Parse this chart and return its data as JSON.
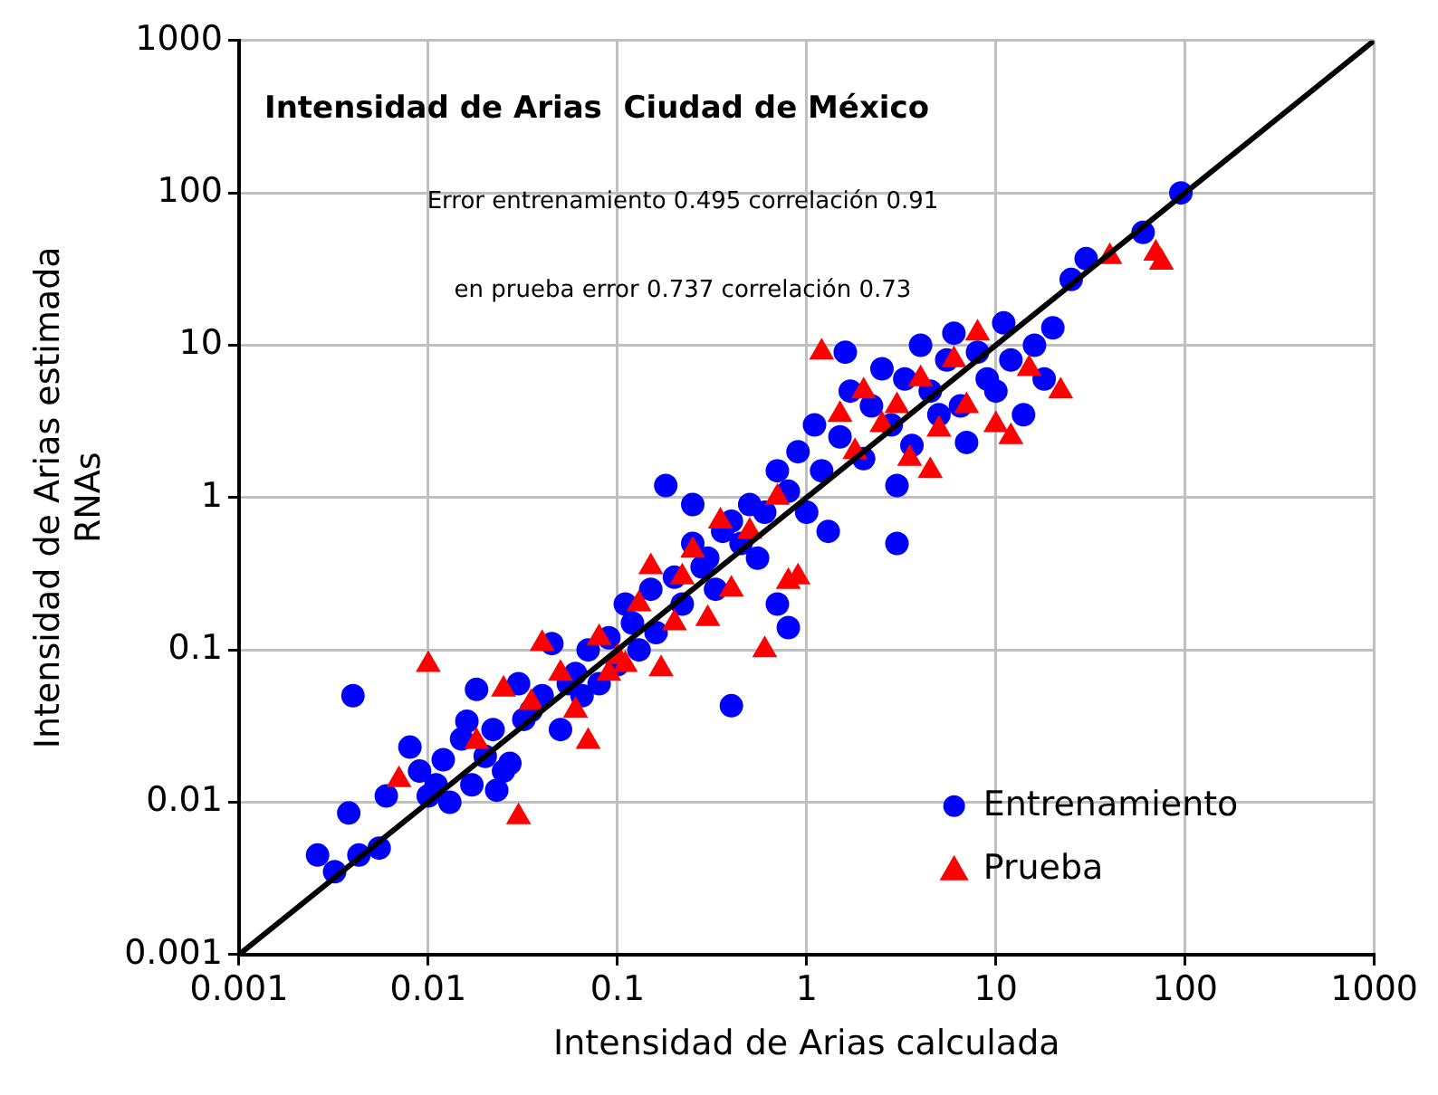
{
  "chart_data": {
    "type": "scatter",
    "title": "Intensidad de Arias  Ciudad de México",
    "xlabel": "Intensidad de Arias calculada",
    "ylabel": "Intensidad de Arias estimada\nRNAs",
    "annotations": [
      "Error entrenamiento 0.495 correlación 0.91",
      "en prueba error 0.737 correlación 0.73"
    ],
    "log": "xy",
    "grid": true,
    "legend": "bottom right",
    "xlim": [
      0.001,
      1000
    ],
    "ylim": [
      0.001,
      1000
    ],
    "xticks": [
      0.001,
      0.01,
      0.1,
      1,
      10,
      100,
      1000
    ],
    "yticks": [
      0.001,
      0.01,
      0.1,
      1,
      10,
      100,
      1000
    ],
    "series": [
      {
        "name": "Entrenamiento",
        "color": "#0000ff",
        "marker": "circle",
        "x": [
          0.0026,
          0.0032,
          0.004,
          0.0038,
          0.0043,
          0.0055,
          0.006,
          0.008,
          0.009,
          0.01,
          0.011,
          0.012,
          0.013,
          0.015,
          0.016,
          0.018,
          0.017,
          0.02,
          0.022,
          0.023,
          0.025,
          0.027,
          0.03,
          0.032,
          0.035,
          0.04,
          0.045,
          0.05,
          0.055,
          0.06,
          0.065,
          0.07,
          0.08,
          0.09,
          0.1,
          0.11,
          0.12,
          0.13,
          0.15,
          0.16,
          0.18,
          0.2,
          0.22,
          0.25,
          0.28,
          0.3,
          0.33,
          0.36,
          0.4,
          0.4,
          0.45,
          0.5,
          0.55,
          0.6,
          0.7,
          0.8,
          0.8,
          0.9,
          1,
          1.1,
          1.2,
          1.3,
          1.5,
          1.7,
          2,
          2.2,
          2.5,
          2.8,
          3,
          3.3,
          3.6,
          4,
          4.5,
          5,
          5.5,
          6,
          6.5,
          7,
          8,
          9,
          10,
          11,
          12,
          14,
          16,
          20,
          18,
          25,
          30,
          60,
          95,
          0.25,
          1.6,
          0.7,
          3
        ],
        "values": [
          0.0045,
          0.0035,
          0.05,
          0.0085,
          0.0045,
          0.005,
          0.011,
          0.023,
          0.016,
          0.011,
          0.013,
          0.019,
          0.01,
          0.026,
          0.034,
          0.055,
          0.013,
          0.02,
          0.03,
          0.012,
          0.016,
          0.018,
          0.06,
          0.035,
          0.04,
          0.05,
          0.11,
          0.03,
          0.06,
          0.07,
          0.05,
          0.1,
          0.06,
          0.12,
          0.08,
          0.2,
          0.15,
          0.1,
          0.25,
          0.13,
          1.2,
          0.3,
          0.2,
          0.5,
          0.35,
          0.4,
          0.25,
          0.6,
          0.043,
          0.7,
          0.5,
          0.9,
          0.4,
          0.8,
          1.5,
          0.14,
          1.1,
          2,
          0.8,
          3,
          1.5,
          0.6,
          2.5,
          5,
          1.8,
          4,
          7,
          3,
          1.2,
          6,
          2.2,
          10,
          5,
          3.5,
          8,
          12,
          4,
          2.3,
          9,
          6,
          5,
          14,
          8,
          3.5,
          10,
          13,
          6,
          27,
          37,
          55,
          100,
          0.9,
          9,
          0.2,
          0.5
        ]
      },
      {
        "name": "Prueba",
        "color": "#ff0000",
        "marker": "triangle",
        "x": [
          0.007,
          0.01,
          0.018,
          0.025,
          0.03,
          0.035,
          0.04,
          0.05,
          0.06,
          0.07,
          0.08,
          0.1,
          0.11,
          0.13,
          0.15,
          0.17,
          0.2,
          0.22,
          0.3,
          0.35,
          0.4,
          0.5,
          0.6,
          0.7,
          0.8,
          0.9,
          1.2,
          1.5,
          1.8,
          2,
          2.5,
          3,
          3.5,
          4,
          4.5,
          5,
          6,
          7,
          8,
          10,
          12,
          22,
          40,
          70,
          75,
          15,
          0.25,
          0.09
        ],
        "values": [
          0.014,
          0.08,
          0.025,
          0.055,
          0.008,
          0.045,
          0.11,
          0.07,
          0.04,
          0.025,
          0.12,
          0.09,
          0.08,
          0.2,
          0.35,
          0.075,
          0.15,
          0.3,
          0.16,
          0.7,
          0.25,
          0.6,
          0.1,
          1,
          0.28,
          0.3,
          9,
          3.5,
          2,
          5,
          3,
          4,
          1.8,
          6,
          1.5,
          2.8,
          8,
          4,
          12,
          3,
          2.5,
          5,
          38,
          40,
          35,
          7,
          0.45,
          0.07
        ]
      },
      {
        "type": "line",
        "color": "#000000",
        "marker": "none",
        "line_style": "solid",
        "x": [
          0.001,
          1000
        ],
        "values": [
          0.001,
          1000
        ]
      }
    ]
  }
}
